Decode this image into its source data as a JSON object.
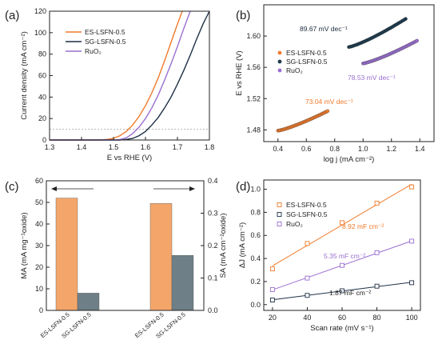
{
  "colors": {
    "orange": "#f07a2a",
    "navy": "#1d2f45",
    "purple": "#9a6fd1",
    "teal": "#1c3a4e",
    "bar_orange": "#f4a66a",
    "bar_gray": "#6f7f87",
    "dash": "#b0b0b0"
  },
  "chart_data": [
    {
      "panel": "(a)",
      "type": "line",
      "xlabel": "E vs RHE (V)",
      "ylabel": "Current density (mA cm⁻²)",
      "xlim": [
        1.3,
        1.8
      ],
      "ylim": [
        0,
        120
      ],
      "xticks": [
        1.3,
        1.4,
        1.5,
        1.6,
        1.7,
        1.8
      ],
      "yticks": [
        0,
        20,
        40,
        60,
        80,
        100,
        120
      ],
      "reference_line_y": 10,
      "legend_position": "upper-left",
      "series": [
        {
          "name": "ES-LSFN-0.5",
          "color": "#f07a2a",
          "x": [
            1.3,
            1.45,
            1.48,
            1.5,
            1.52,
            1.54,
            1.56,
            1.58,
            1.6,
            1.62,
            1.64,
            1.66,
            1.68,
            1.7,
            1.715
          ],
          "y": [
            0,
            0,
            0.5,
            1.5,
            4,
            8,
            14,
            22,
            32,
            44,
            58,
            74,
            91,
            108,
            120
          ]
        },
        {
          "name": "SG-LSFN-0.5",
          "color": "#1d2f45",
          "x": [
            1.3,
            1.52,
            1.54,
            1.56,
            1.58,
            1.6,
            1.62,
            1.64,
            1.66,
            1.68,
            1.7,
            1.72,
            1.74,
            1.76,
            1.78,
            1.8
          ],
          "y": [
            0,
            0,
            0.5,
            1.5,
            4,
            8,
            14,
            21,
            30,
            40,
            52,
            65,
            79,
            94,
            108,
            120
          ]
        },
        {
          "name": "RuO₂",
          "color": "#9a6fd1",
          "x": [
            1.3,
            1.5,
            1.52,
            1.54,
            1.56,
            1.58,
            1.6,
            1.62,
            1.64,
            1.66,
            1.68,
            1.7,
            1.72,
            1.74
          ],
          "y": [
            0,
            0,
            0.5,
            2,
            6,
            12,
            20,
            30,
            42,
            56,
            71,
            87,
            104,
            120
          ]
        }
      ]
    },
    {
      "panel": "(b)",
      "type": "scatter",
      "xlabel": "log j (mA cm⁻²)",
      "ylabel": "E  vs RHE (V)",
      "xlim": [
        0.3,
        1.5
      ],
      "ylim": [
        1.465,
        1.64
      ],
      "xticks": [
        0.4,
        0.6,
        0.8,
        1.0,
        1.2,
        1.4
      ],
      "yticks": [
        1.48,
        1.52,
        1.56,
        1.6
      ],
      "legend_position": "center-left",
      "series": [
        {
          "name": "ES-LSFN-0.5",
          "color": "#f07a2a",
          "x_range": [
            0.4,
            0.75
          ],
          "y_range": [
            1.479,
            1.504
          ],
          "slope_label": "73.04 mV dec⁻¹"
        },
        {
          "name": "SG-LSFN-0.5",
          "color": "#1c3a4e",
          "x_range": [
            0.9,
            1.3
          ],
          "y_range": [
            1.586,
            1.622
          ],
          "slope_label": "89.67 mV dec⁻¹"
        },
        {
          "name": "RuO₂",
          "color": "#9a6fd1",
          "x_range": [
            1.0,
            1.38
          ],
          "y_range": [
            1.565,
            1.594
          ],
          "slope_label": "78.53 mV dec⁻¹"
        }
      ]
    },
    {
      "panel": "(c)",
      "type": "bar",
      "ylabel_left": "MA (mA mg⁻¹oxide)",
      "ylabel_right": "SA (mA cm⁻²oxide)",
      "ylim_left": [
        0,
        60
      ],
      "ylim_right": [
        0,
        0.4
      ],
      "yticks_left": [
        0,
        10,
        20,
        30,
        40,
        50,
        60
      ],
      "yticks_right": [
        0.0,
        0.1,
        0.2,
        0.3,
        0.4
      ],
      "categories": [
        "ES-LSFN-0.5",
        "SG-LSFN-0.5",
        "ES-LSFN-0.5",
        "SG-LSFN-0.5"
      ],
      "groups": [
        {
          "axis": "left",
          "values": [
            52,
            8
          ]
        },
        {
          "axis": "right",
          "values": [
            0.33,
            0.17
          ]
        }
      ],
      "arrows": [
        "left",
        "right"
      ]
    },
    {
      "panel": "(d)",
      "type": "scatter",
      "xlabel": "Scan rate (mV s⁻¹)",
      "ylabel": "ΔJ (mA cm⁻²)",
      "xlim": [
        15,
        105
      ],
      "ylim": [
        -0.05,
        1.08
      ],
      "xticks": [
        20,
        40,
        60,
        80,
        100
      ],
      "yticks": [
        0.0,
        0.2,
        0.4,
        0.6,
        0.8,
        1.0
      ],
      "legend_position": "upper-left",
      "series": [
        {
          "name": "ES-LSFN-0.5",
          "color": "#f07a2a",
          "x": [
            20,
            40,
            60,
            80,
            100
          ],
          "y": [
            0.31,
            0.53,
            0.71,
            0.88,
            1.02
          ],
          "slope_label": "8.92 mF cm⁻²"
        },
        {
          "name": "SG-LSFN-0.5",
          "color": "#1d2f45",
          "x": [
            20,
            40,
            60,
            80,
            100
          ],
          "y": [
            0.04,
            0.08,
            0.12,
            0.16,
            0.19
          ],
          "slope_label": "1.87 mF cm⁻²"
        },
        {
          "name": "RuO₂",
          "color": "#9a6fd1",
          "x": [
            20,
            40,
            60,
            80,
            100
          ],
          "y": [
            0.13,
            0.23,
            0.34,
            0.45,
            0.55
          ],
          "slope_label": "5.35 mF cm⁻²"
        }
      ]
    }
  ]
}
